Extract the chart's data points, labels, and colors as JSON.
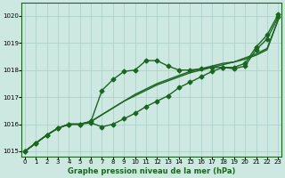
{
  "title": "Graphe pression niveau de la mer (hPa)",
  "background_color": "#cce8e0",
  "grid_color": "#aaccc8",
  "line_color": "#1a6620",
  "x_ticks": [
    0,
    1,
    2,
    3,
    4,
    5,
    6,
    7,
    8,
    9,
    10,
    11,
    12,
    13,
    14,
    15,
    16,
    17,
    18,
    19,
    20,
    21,
    22,
    23
  ],
  "ylim": [
    1014.8,
    1020.5
  ],
  "xlim": [
    -0.3,
    23.3
  ],
  "yticks": [
    1015,
    1016,
    1017,
    1018,
    1019,
    1020
  ],
  "series": [
    {
      "y": [
        1015.0,
        1015.3,
        1015.6,
        1015.85,
        1016.0,
        1016.0,
        1016.1,
        1016.35,
        1016.6,
        1016.85,
        1017.05,
        1017.25,
        1017.45,
        1017.6,
        1017.75,
        1017.9,
        1018.0,
        1018.1,
        1018.2,
        1018.3,
        1018.4,
        1018.55,
        1018.75,
        1019.85
      ],
      "marker": false,
      "linewidth": 1.0
    },
    {
      "y": [
        1015.0,
        1015.3,
        1015.6,
        1015.85,
        1016.0,
        1016.0,
        1016.1,
        1016.35,
        1016.6,
        1016.85,
        1017.1,
        1017.3,
        1017.5,
        1017.65,
        1017.8,
        1017.95,
        1018.05,
        1018.15,
        1018.25,
        1018.3,
        1018.45,
        1018.6,
        1018.8,
        1019.85
      ],
      "marker": false,
      "linewidth": 1.0
    },
    {
      "y": [
        1015.0,
        1015.3,
        1015.6,
        1015.85,
        1016.0,
        1016.0,
        1016.1,
        1017.25,
        1017.65,
        1017.95,
        1018.0,
        1018.35,
        1018.35,
        1018.15,
        1018.0,
        1018.0,
        1018.05,
        1018.1,
        1018.1,
        1018.05,
        1018.15,
        1018.75,
        1019.15,
        1019.95
      ],
      "marker": true,
      "linewidth": 1.0
    },
    {
      "y": [
        1015.0,
        1015.3,
        1015.6,
        1015.85,
        1016.0,
        1016.0,
        1016.05,
        1015.9,
        1016.0,
        1016.2,
        1016.4,
        1016.65,
        1016.85,
        1017.05,
        1017.35,
        1017.55,
        1017.75,
        1017.95,
        1018.1,
        1018.1,
        1018.25,
        1018.85,
        1019.3,
        1020.05
      ],
      "marker": true,
      "linewidth": 1.0
    }
  ],
  "marker": "D",
  "marker_size": 2.5,
  "tick_fontsize": 5,
  "xlabel_fontsize": 6,
  "title_fontsize": 6
}
